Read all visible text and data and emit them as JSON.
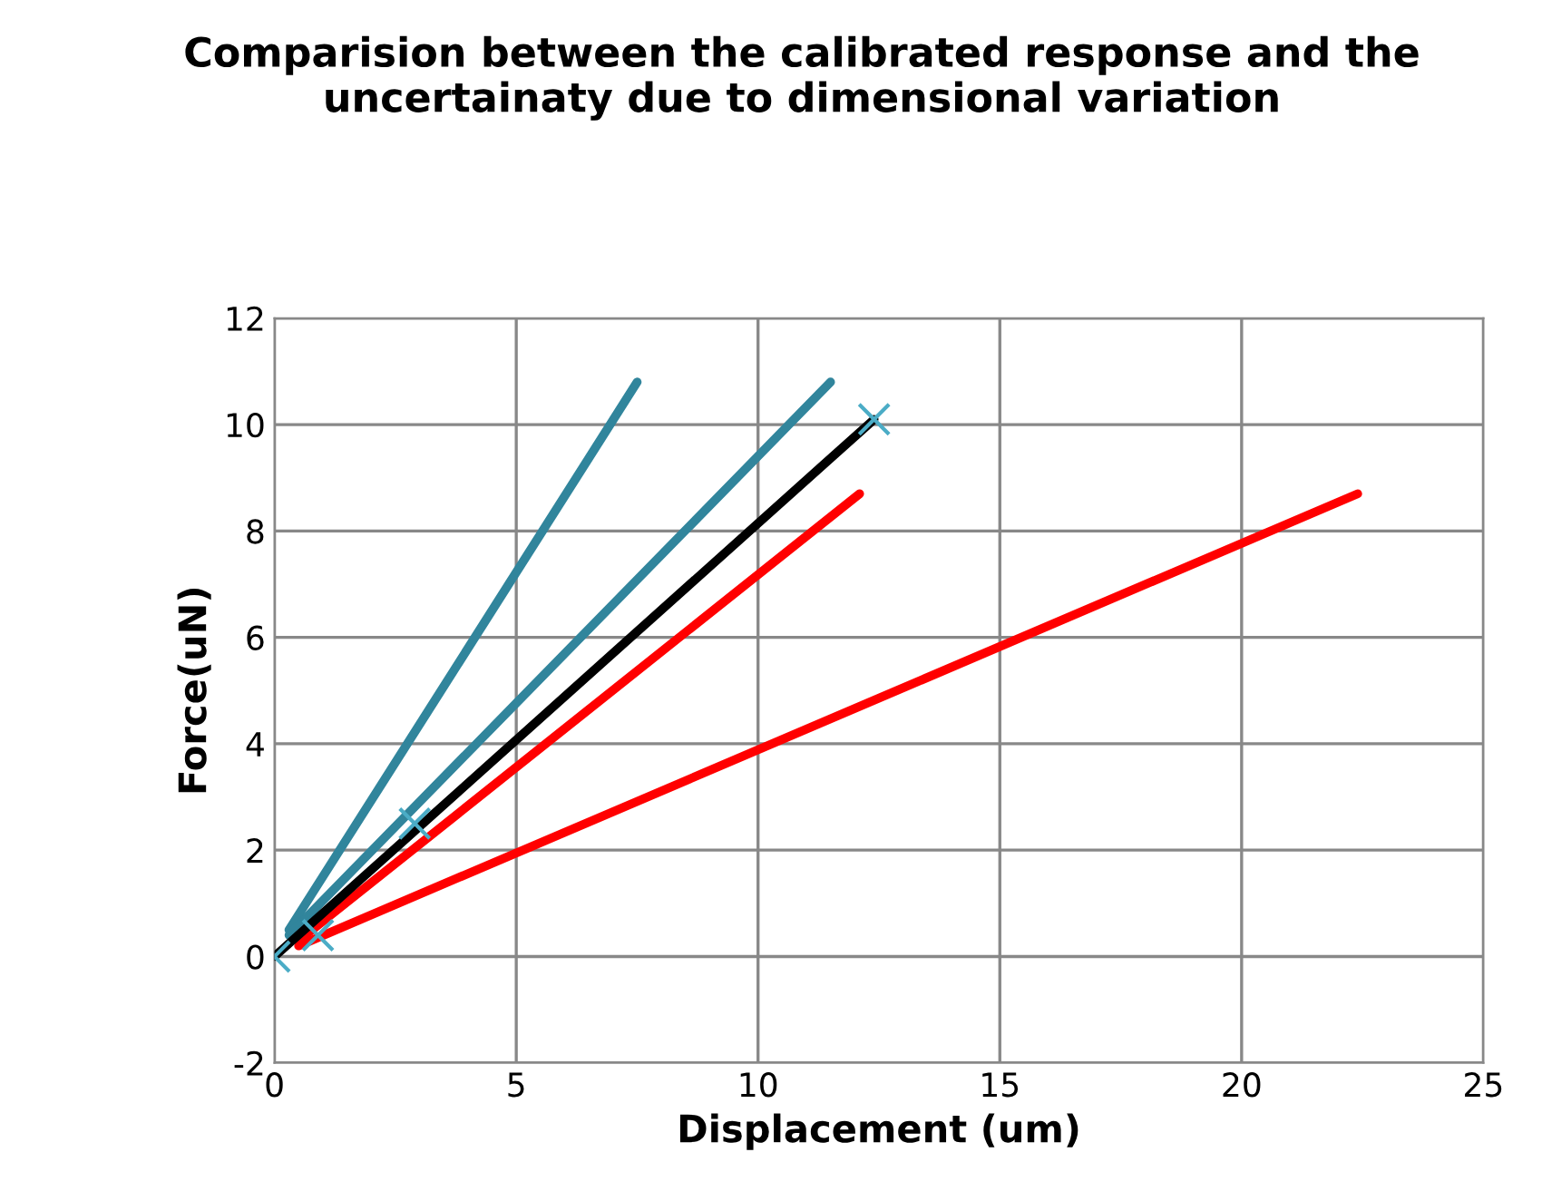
{
  "chart_data": {
    "type": "line",
    "title": "Comparision between the calibrated response and the uncertainaty due to dimensional variation",
    "xlabel": "Displacement (um)",
    "ylabel": "Force(uN)",
    "xlim": [
      0,
      25
    ],
    "xticks": [
      0,
      5,
      10,
      15,
      20,
      25
    ],
    "ylim": [
      -2,
      12
    ],
    "yticks": [
      -2,
      0,
      2,
      4,
      6,
      8,
      10,
      12
    ],
    "grid": true,
    "legend": false,
    "marker": "none",
    "line_style": "solid",
    "series": [
      {
        "color": "#31859c",
        "x": [
          0.3,
          7.5
        ],
        "values": [
          0.5,
          10.8
        ]
      },
      {
        "color": "#31859c",
        "x": [
          0.3,
          11.5
        ],
        "values": [
          0.4,
          10.8
        ]
      },
      {
        "color": "#ff0000",
        "x": [
          0.5,
          12.1
        ],
        "values": [
          0.3,
          8.7
        ]
      },
      {
        "color": "#ff0000",
        "x": [
          0.5,
          22.4
        ],
        "values": [
          0.2,
          8.7
        ]
      },
      {
        "color": "#000000",
        "x": [
          0,
          12.4
        ],
        "values": [
          0,
          10.1
        ]
      },
      {
        "type": "scatter",
        "marker": "cross",
        "color": "#4bacc6",
        "x": [
          0,
          0.9,
          2.9,
          12.4
        ],
        "values": [
          0,
          0.4,
          2.5,
          10.1
        ]
      }
    ]
  }
}
